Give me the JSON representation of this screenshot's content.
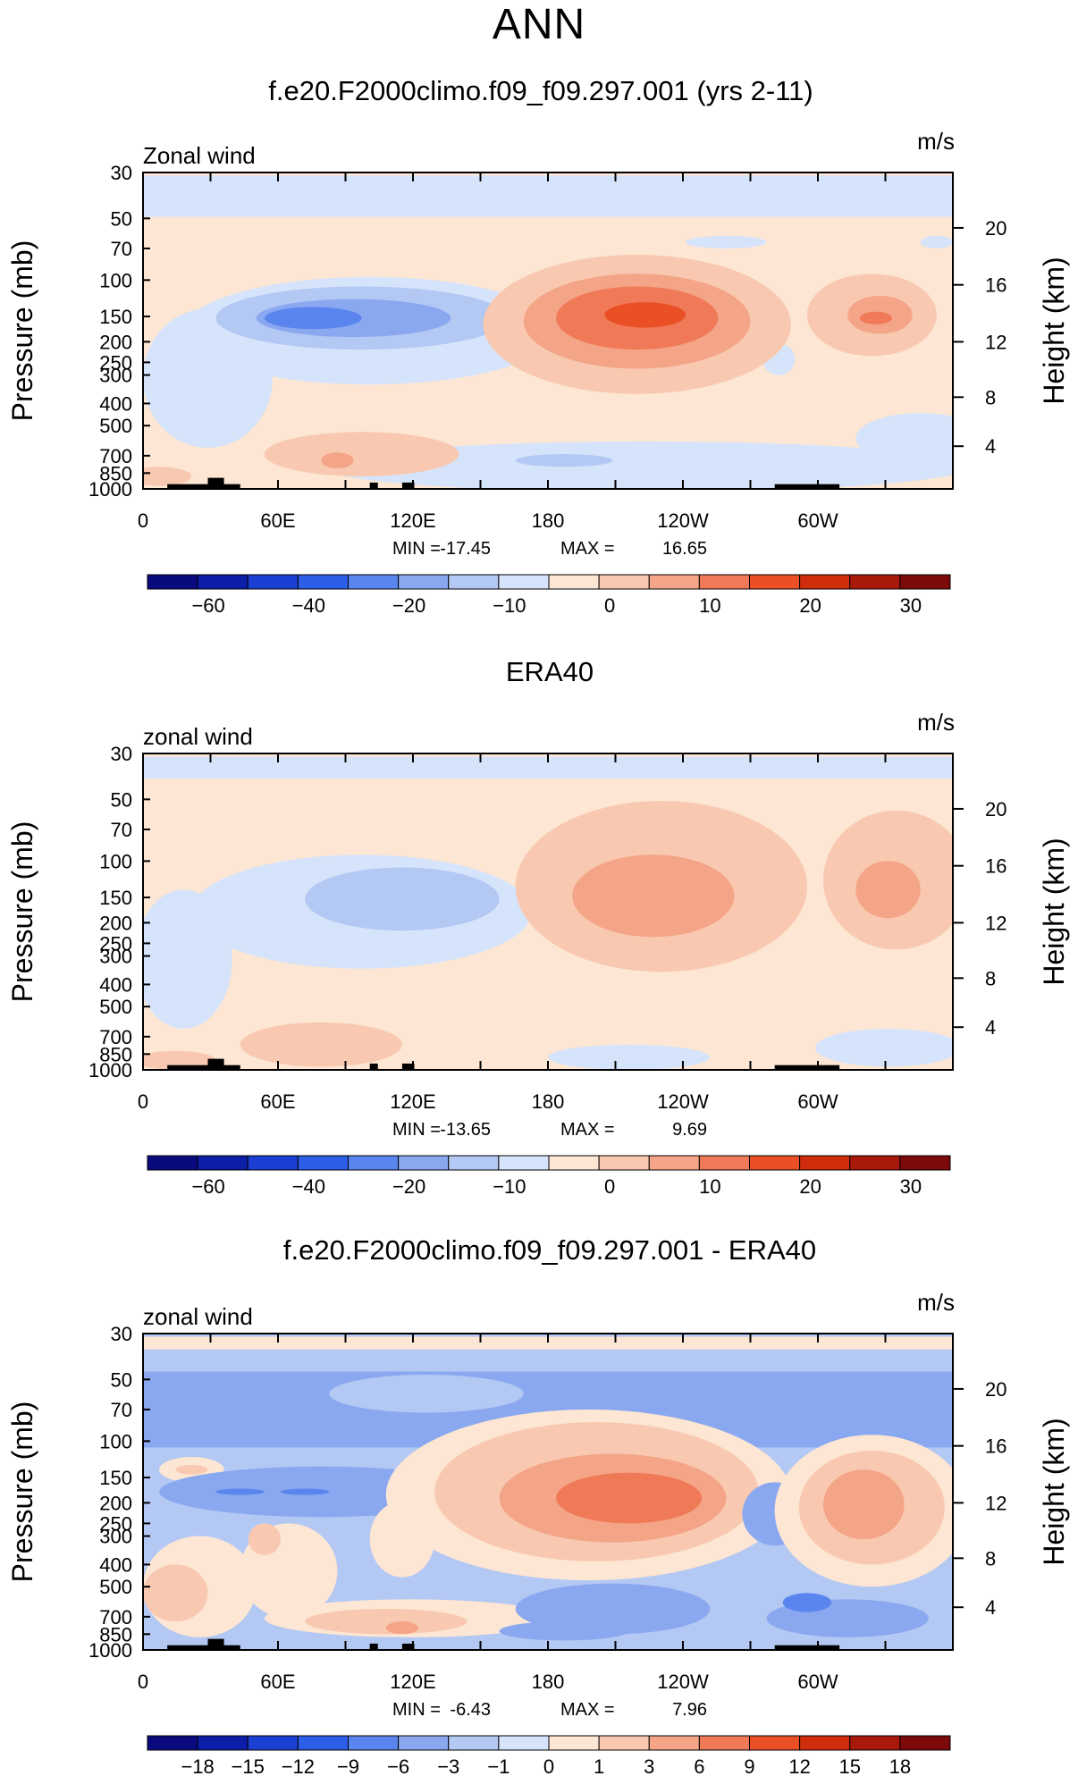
{
  "header": {
    "title": "ANN"
  },
  "chart_data": [
    {
      "type": "heatmap",
      "title": "f.e20.F2000climo.f09_f09.297.001 (yrs 2-11)",
      "field_label": "Zonal wind",
      "units": "m/s",
      "ylabel_left": "Pressure (mb)",
      "ylabel_right": "Height (km)",
      "xticks": [
        "0",
        "60E",
        "120E",
        "180",
        "120W",
        "60W"
      ],
      "pressure_ticks": [
        "30",
        "50",
        "70",
        "100",
        "150",
        "200",
        "250",
        "300",
        "400",
        "500",
        "700",
        "850",
        "1000"
      ],
      "height_ticks": [
        "20",
        "16",
        "12",
        "8",
        "4"
      ],
      "min_label": "MIN =",
      "min_value": "-17.45",
      "max_label": "MAX =",
      "max_value": "16.65",
      "colorbar_labels": [
        "−60",
        "−40",
        "−20",
        "−10",
        "0",
        "10",
        "20",
        "30"
      ],
      "colorbar_colors": [
        "#0a0a7f",
        "#0c1ea8",
        "#1b3fd2",
        "#2d5ee8",
        "#5b85ee",
        "#8aa8f0",
        "#b4c8f4",
        "#d6e4fb",
        "#fde6d3",
        "#f8c9b0",
        "#f4a487",
        "#f07a58",
        "#ea4f25",
        "#d02d0c",
        "#a8180b",
        "#7d0a0a"
      ],
      "features": [
        {
          "name": "stratospheric easterlies",
          "value": -5,
          "lon": [
            0,
            360
          ],
          "p": [
            30,
            50
          ]
        },
        {
          "name": "upper-tropospheric westerly maximum 150W",
          "value": 16.65,
          "lon": [
            190,
            230
          ],
          "p": [
            150,
            200
          ]
        },
        {
          "name": "upper-tropospheric westerly maximum 40W",
          "value": 12,
          "lon": [
            300,
            340
          ],
          "p": [
            150,
            200
          ]
        },
        {
          "name": "upper-tropospheric easterly maximum 80E",
          "value": -17.45,
          "lon": [
            40,
            120
          ],
          "p": [
            100,
            250
          ]
        }
      ]
    },
    {
      "type": "heatmap",
      "title": "ERA40",
      "field_label": "zonal wind",
      "units": "m/s",
      "ylabel_left": "Pressure (mb)",
      "ylabel_right": "Height (km)",
      "xticks": [
        "0",
        "60E",
        "120E",
        "180",
        "120W",
        "60W"
      ],
      "pressure_ticks": [
        "30",
        "50",
        "70",
        "100",
        "150",
        "200",
        "250",
        "300",
        "400",
        "500",
        "700",
        "850",
        "1000"
      ],
      "height_ticks": [
        "20",
        "16",
        "12",
        "8",
        "4"
      ],
      "min_label": "MIN =",
      "min_value": "-13.65",
      "max_label": "MAX =",
      "max_value": "9.69",
      "colorbar_labels": [
        "−60",
        "−40",
        "−20",
        "−10",
        "0",
        "10",
        "20",
        "30"
      ],
      "colorbar_colors": [
        "#0a0a7f",
        "#0c1ea8",
        "#1b3fd2",
        "#2d5ee8",
        "#5b85ee",
        "#8aa8f0",
        "#b4c8f4",
        "#d6e4fb",
        "#fde6d3",
        "#f8c9b0",
        "#f4a487",
        "#f07a58",
        "#ea4f25",
        "#d02d0c",
        "#a8180b",
        "#7d0a0a"
      ],
      "features": [
        {
          "name": "stratospheric easterlies",
          "value": -5,
          "lon": [
            0,
            360
          ],
          "p": [
            30,
            40
          ]
        },
        {
          "name": "upper-tropospheric westerly maximum 150W",
          "value": 9.69,
          "lon": [
            200,
            240
          ],
          "p": [
            100,
            250
          ]
        },
        {
          "name": "upper-tropospheric easterly maximum 80E",
          "value": -13.65,
          "lon": [
            60,
            130
          ],
          "p": [
            100,
            300
          ]
        }
      ]
    },
    {
      "type": "heatmap",
      "title": "f.e20.F2000climo.f09_f09.297.001 - ERA40",
      "field_label": "zonal wind",
      "units": "m/s",
      "ylabel_left": "Pressure (mb)",
      "ylabel_right": "Height (km)",
      "xticks": [
        "0",
        "60E",
        "120E",
        "180",
        "120W",
        "60W"
      ],
      "pressure_ticks": [
        "30",
        "50",
        "70",
        "100",
        "150",
        "200",
        "250",
        "300",
        "400",
        "500",
        "700",
        "850",
        "1000"
      ],
      "height_ticks": [
        "20",
        "16",
        "12",
        "8",
        "4"
      ],
      "min_label": "MIN =",
      "min_value": "-6.43",
      "max_label": "MAX =",
      "max_value": "7.96",
      "colorbar_labels": [
        "−18",
        "−15",
        "−12",
        "−9",
        "−6",
        "−3",
        "−1",
        "0",
        "1",
        "3",
        "6",
        "9",
        "12",
        "15",
        "18"
      ],
      "colorbar_colors": [
        "#0a0a7f",
        "#0c1ea8",
        "#1b3fd2",
        "#2d5ee8",
        "#5b85ee",
        "#8aa8f0",
        "#b4c8f4",
        "#d6e4fb",
        "#fde6d3",
        "#f8c9b0",
        "#f4a487",
        "#f07a58",
        "#ea4f25",
        "#d02d0c",
        "#a8180b",
        "#7d0a0a"
      ],
      "features": [
        {
          "name": "positive difference maximum 160W",
          "value": 7.96,
          "lon": [
            180,
            250
          ],
          "p": [
            100,
            300
          ]
        },
        {
          "name": "negative difference band stratosphere",
          "value": -6.43,
          "lon": [
            0,
            360
          ],
          "p": [
            50,
            100
          ]
        }
      ]
    }
  ]
}
